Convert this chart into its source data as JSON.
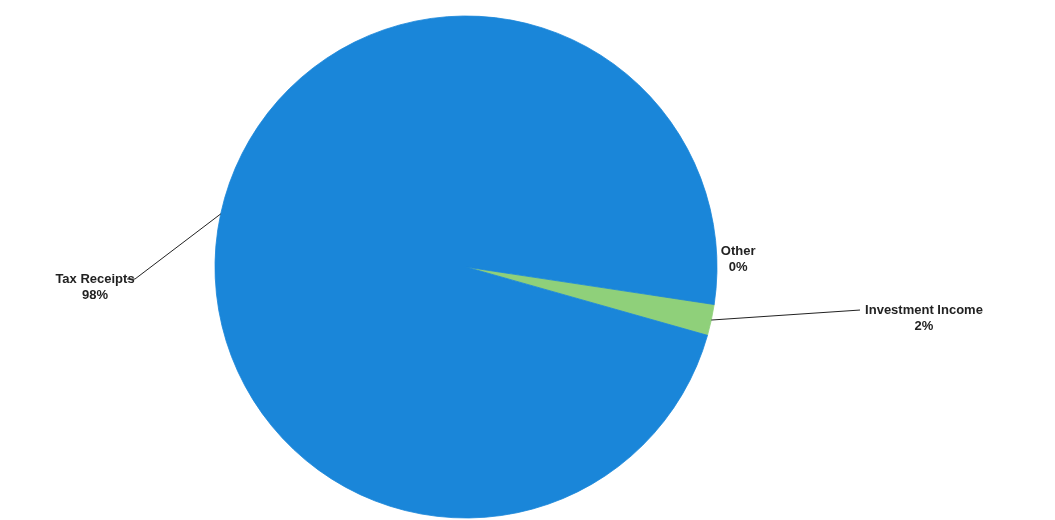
{
  "chart_data": {
    "type": "pie",
    "categories": [
      "Other",
      "Investment Income",
      "Tax Receipts"
    ],
    "values": [
      0,
      2,
      98
    ],
    "colors": [
      "#c0504d",
      "#8fd07a",
      "#1a86d9"
    ],
    "value_labels": [
      "0%",
      "2%",
      "98%"
    ]
  }
}
